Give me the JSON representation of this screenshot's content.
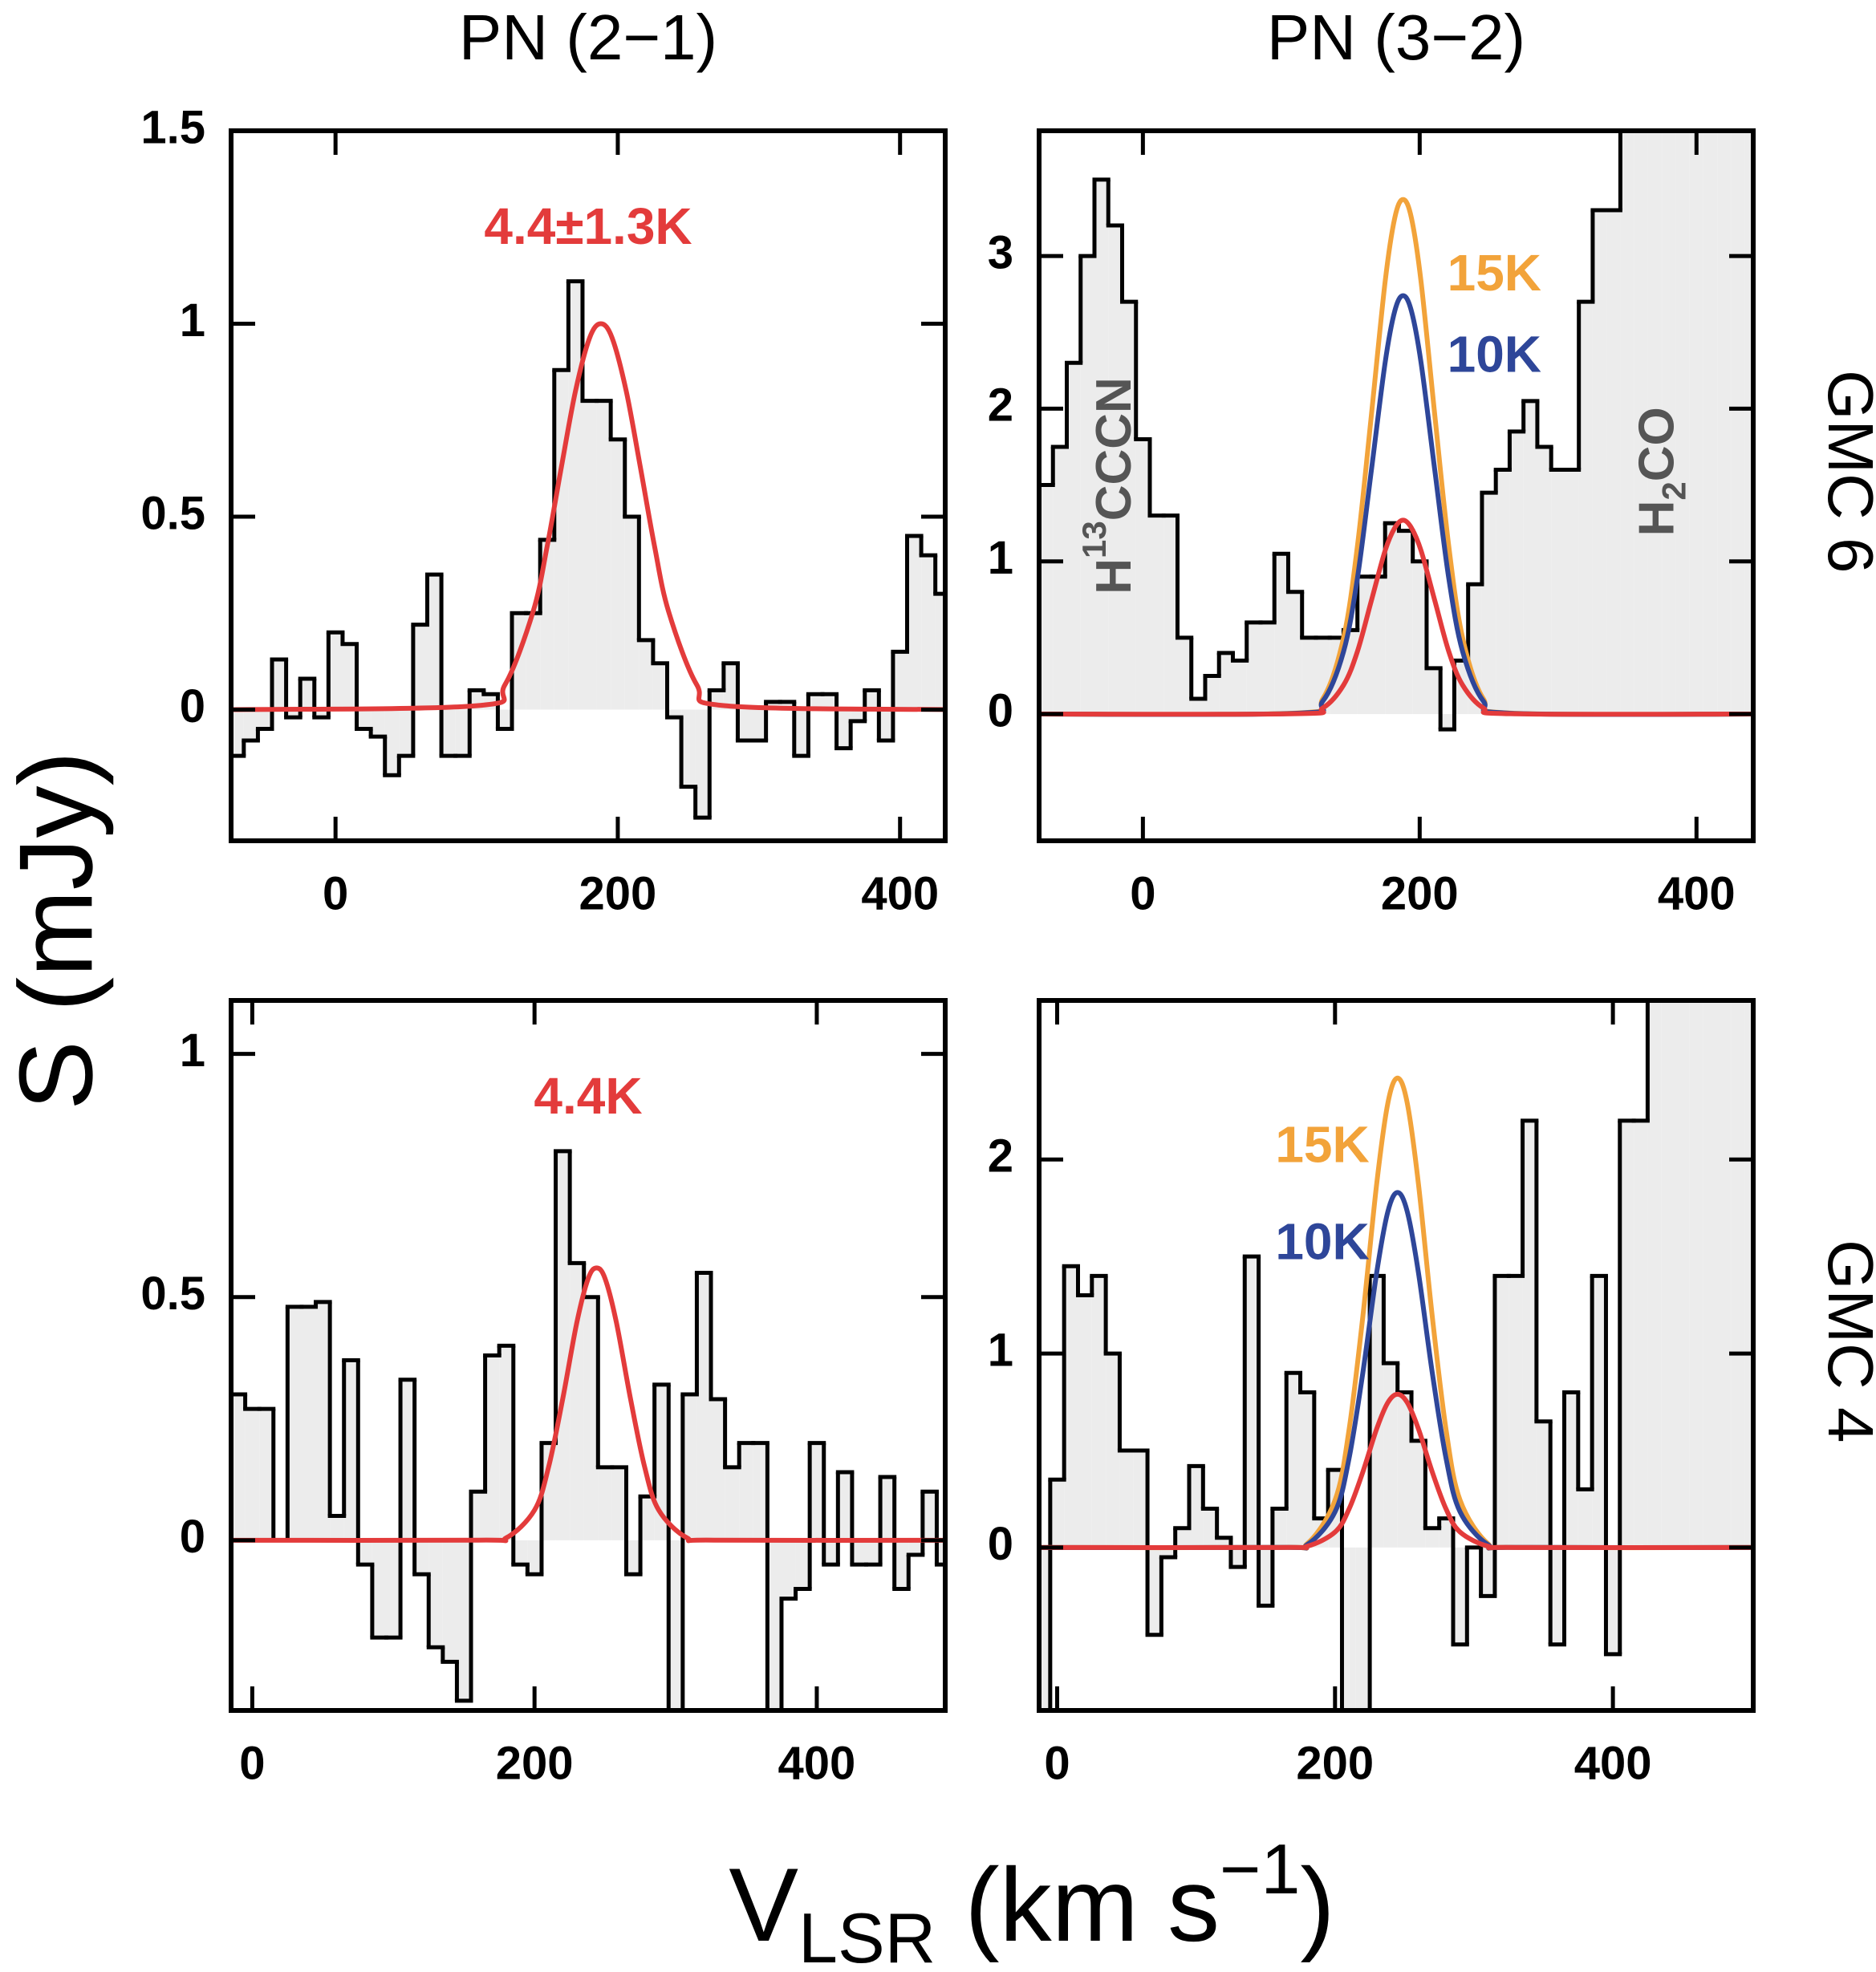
{
  "figure": {
    "ylabel": "S (mJy)",
    "xlabel": {
      "text": "V",
      "sub": "LSR",
      "text2": " (km s",
      "sup": "−1",
      "text3": ")"
    }
  },
  "chart_data": [
    {
      "type": "step",
      "title": "PN (2−1)",
      "annotation": {
        "text": "4.4±1.3K",
        "color": "#e33b3b"
      },
      "xlim": [
        -74,
        432
      ],
      "ylim": [
        -0.34,
        1.5
      ],
      "xticks": [
        0,
        200,
        400
      ],
      "yticks": [
        0,
        0.5,
        1,
        1.5
      ],
      "histogram": {
        "color": "#000000",
        "fill": "#ececec",
        "x": [
          -70,
          -60,
          -50,
          -40,
          -30,
          -20,
          -10,
          0,
          10,
          20,
          30,
          40,
          50,
          60,
          70,
          80,
          90,
          100,
          110,
          120,
          130,
          140,
          150,
          160,
          170,
          180,
          190,
          200,
          210,
          220,
          230,
          240,
          250,
          260,
          270,
          280,
          290,
          300,
          310,
          320,
          330,
          340,
          350,
          360,
          370,
          380,
          390,
          400,
          410,
          420,
          430
        ],
        "values": [
          -0.12,
          -0.08,
          -0.05,
          0.13,
          -0.02,
          0.08,
          -0.02,
          0.2,
          0.17,
          -0.05,
          -0.07,
          -0.17,
          -0.12,
          0.22,
          0.35,
          -0.12,
          -0.12,
          0.05,
          0.04,
          -0.05,
          0.25,
          0.25,
          0.44,
          0.88,
          1.11,
          0.8,
          0.8,
          0.7,
          0.5,
          0.18,
          0.12,
          -0.02,
          -0.2,
          -0.28,
          0.05,
          0.12,
          -0.08,
          -0.08,
          0.02,
          0.02,
          -0.12,
          0.04,
          0.04,
          -0.1,
          -0.03,
          0.05,
          -0.08,
          0.15,
          0.45,
          0.4,
          0.3
        ]
      },
      "series": [
        {
          "color": "#e33b3b",
          "x": [
            -74,
            100,
            120,
            140,
            150,
            160,
            170,
            180,
            188,
            196,
            206,
            216,
            226,
            236,
            256,
            276,
            432
          ],
          "values": [
            0,
            0.01,
            0.064,
            0.254,
            0.424,
            0.628,
            0.825,
            0.963,
            1.0,
            0.963,
            0.825,
            0.628,
            0.424,
            0.254,
            0.064,
            0.01,
            0
          ]
        }
      ]
    },
    {
      "type": "step",
      "title": "PN (3−2)",
      "side_label": "GMC 6",
      "label_side": "right",
      "annotations": [
        {
          "text": "H",
          "sup": "13",
          "text2": "CCCN",
          "color": "#555555"
        },
        {
          "text": "H",
          "sub": "2",
          "text2": "CO",
          "color": "#555555"
        }
      ],
      "xlim": [
        -75,
        441
      ],
      "ylim": [
        -0.83,
        3.82
      ],
      "xticks": [
        0,
        200,
        400
      ],
      "yticks": [
        0,
        1,
        2,
        3
      ],
      "histogram": {
        "color": "#000000",
        "fill": "#ececec",
        "x": [
          -70,
          -60,
          -50,
          -40,
          -30,
          -20,
          -10,
          0,
          10,
          20,
          30,
          40,
          50,
          60,
          70,
          80,
          90,
          100,
          110,
          120,
          130,
          140,
          150,
          160,
          170,
          180,
          190,
          200,
          210,
          220,
          230,
          240,
          250,
          260,
          270,
          280,
          290,
          300,
          310,
          320,
          330,
          340,
          350,
          360,
          370,
          380,
          390,
          400,
          410,
          420,
          430,
          440
        ],
        "values": [
          1.5,
          1.75,
          2.3,
          3.0,
          3.5,
          3.2,
          2.7,
          1.8,
          1.3,
          1.3,
          0.5,
          0.1,
          0.25,
          0.4,
          0.35,
          0.6,
          0.6,
          1.05,
          0.8,
          0.5,
          0.5,
          0.5,
          0.55,
          0.9,
          0.9,
          1.25,
          1.2,
          1.0,
          0.3,
          -0.1,
          0.35,
          0.85,
          1.45,
          1.6,
          1.85,
          2.05,
          1.75,
          1.6,
          1.6,
          2.7,
          3.3,
          3.3,
          4.0,
          4.0,
          4.0,
          4.0,
          4.0,
          4.0,
          4.0,
          4.0,
          4.0,
          4.0
        ]
      },
      "series": [
        {
          "name": "15K",
          "color": "#f2a33a",
          "x": [
            -75,
            110,
            130,
            145,
            155,
            165,
            175,
            182,
            188,
            194,
            201,
            211,
            221,
            231,
            246,
            266,
            441
          ],
          "values": [
            0,
            0.006,
            0.1,
            0.5,
            1.1,
            1.95,
            2.83,
            3.25,
            3.37,
            3.25,
            2.83,
            1.95,
            1.1,
            0.5,
            0.1,
            0.006,
            0
          ]
        },
        {
          "name": "10K",
          "color": "#2e4699",
          "x": [
            -75,
            110,
            130,
            145,
            155,
            165,
            175,
            182,
            188,
            194,
            201,
            211,
            221,
            231,
            246,
            266,
            441
          ],
          "values": [
            0,
            0.005,
            0.085,
            0.41,
            0.89,
            1.59,
            2.3,
            2.64,
            2.74,
            2.64,
            2.3,
            1.59,
            0.89,
            0.41,
            0.085,
            0.005,
            0
          ]
        },
        {
          "color": "#e33b3b",
          "x": [
            -75,
            110,
            130,
            145,
            155,
            165,
            175,
            182,
            188,
            194,
            201,
            211,
            221,
            231,
            246,
            266,
            441
          ],
          "values": [
            0,
            0.002,
            0.04,
            0.19,
            0.41,
            0.74,
            1.07,
            1.22,
            1.27,
            1.22,
            1.07,
            0.74,
            0.41,
            0.19,
            0.04,
            0.002,
            0
          ]
        }
      ]
    },
    {
      "type": "step",
      "annotation": {
        "text": "4.4K",
        "color": "#e33b3b"
      },
      "xlim": [
        -15,
        491
      ],
      "ylim": [
        -0.35,
        1.11
      ],
      "xticks": [
        0,
        200,
        400
      ],
      "yticks": [
        0,
        0.5,
        1
      ],
      "histogram": {
        "color": "#000000",
        "fill": "#ececec",
        "x": [
          -10,
          0,
          10,
          20,
          30,
          40,
          50,
          60,
          70,
          80,
          90,
          100,
          110,
          120,
          130,
          140,
          150,
          160,
          170,
          180,
          190,
          200,
          210,
          220,
          230,
          240,
          250,
          260,
          270,
          280,
          290,
          300,
          310,
          320,
          330,
          340,
          350,
          360,
          370,
          380,
          390,
          400,
          410,
          420,
          430,
          440,
          450,
          460,
          470,
          480,
          490
        ],
        "values": [
          0.3,
          0.27,
          0.27,
          0.0,
          0.48,
          0.48,
          0.49,
          0.05,
          0.37,
          -0.05,
          -0.2,
          -0.2,
          0.33,
          -0.07,
          -0.22,
          -0.25,
          -0.33,
          0.1,
          0.38,
          0.4,
          -0.05,
          -0.07,
          0.2,
          0.8,
          0.57,
          0.5,
          0.15,
          0.15,
          -0.07,
          0.09,
          0.32,
          -0.35,
          0.3,
          0.55,
          0.29,
          0.15,
          0.2,
          0.2,
          -0.35,
          -0.12,
          -0.1,
          0.2,
          -0.05,
          0.14,
          -0.05,
          -0.05,
          0.13,
          -0.1,
          -0.03,
          0.1,
          -0.05
        ]
      },
      "series": [
        {
          "color": "#e33b3b",
          "x": [
            -15,
            160,
            180,
            200,
            210,
            220,
            230,
            238,
            244,
            250,
            258,
            268,
            278,
            288,
            308,
            328,
            491
          ],
          "values": [
            0,
            0.0002,
            0.005,
            0.062,
            0.151,
            0.291,
            0.448,
            0.538,
            0.56,
            0.538,
            0.448,
            0.291,
            0.151,
            0.062,
            0.005,
            0.0002,
            0
          ]
        }
      ]
    },
    {
      "type": "step",
      "side_label": "GMC 4",
      "label_side": "left",
      "xlim": [
        -13,
        501
      ],
      "ylim": [
        -0.84,
        2.82
      ],
      "xticks": [
        0,
        200,
        400
      ],
      "yticks": [
        0,
        1,
        2
      ],
      "histogram": {
        "color": "#000000",
        "fill": "#ececec",
        "x": [
          -10,
          0,
          10,
          20,
          30,
          40,
          50,
          60,
          70,
          80,
          90,
          100,
          110,
          120,
          130,
          140,
          150,
          160,
          170,
          180,
          190,
          200,
          210,
          220,
          230,
          240,
          250,
          260,
          270,
          280,
          290,
          300,
          310,
          320,
          330,
          340,
          350,
          360,
          370,
          380,
          390,
          400,
          410,
          420,
          430,
          440,
          450,
          460,
          470,
          480,
          490,
          500
        ],
        "values": [
          -0.9,
          0.35,
          1.45,
          1.3,
          1.4,
          1.0,
          0.5,
          0.5,
          -0.45,
          -0.05,
          0.1,
          0.42,
          0.2,
          0.05,
          -0.1,
          1.5,
          -0.3,
          0.2,
          0.9,
          0.8,
          0.15,
          0.4,
          -0.9,
          -0.9,
          1.4,
          0.95,
          0.8,
          0.55,
          0.1,
          0.15,
          -0.5,
          0.0,
          -0.25,
          1.4,
          1.4,
          2.2,
          0.65,
          -0.5,
          0.8,
          0.3,
          1.4,
          -0.55,
          2.2,
          2.2,
          3.0,
          3.0,
          3.0,
          3.0,
          3.0,
          3.0,
          3.0,
          3.0
        ]
      },
      "series": [
        {
          "name": "15K",
          "color": "#f2a33a",
          "x": [
            -13,
            160,
            180,
            200,
            210,
            220,
            230,
            238,
            245,
            252,
            260,
            270,
            280,
            290,
            310,
            330,
            501
          ],
          "values": [
            0,
            0.0007,
            0.02,
            0.244,
            0.603,
            1.19,
            1.876,
            2.29,
            2.42,
            2.29,
            1.876,
            1.19,
            0.603,
            0.244,
            0.02,
            0.0007,
            0
          ]
        },
        {
          "name": "10K",
          "color": "#2e4699",
          "x": [
            -13,
            160,
            180,
            200,
            210,
            220,
            230,
            238,
            245,
            252,
            260,
            270,
            280,
            290,
            310,
            330,
            501
          ],
          "values": [
            0,
            0.0005,
            0.015,
            0.184,
            0.456,
            0.9,
            1.418,
            1.731,
            1.83,
            1.731,
            1.418,
            0.9,
            0.456,
            0.184,
            0.015,
            0.0005,
            0
          ]
        },
        {
          "color": "#e33b3b",
          "x": [
            -13,
            160,
            180,
            200,
            210,
            220,
            230,
            238,
            245,
            252,
            260,
            270,
            280,
            290,
            310,
            330,
            501
          ],
          "values": [
            0,
            0.0002,
            0.0066,
            0.0796,
            0.197,
            0.389,
            0.612,
            0.747,
            0.79,
            0.747,
            0.612,
            0.389,
            0.197,
            0.0796,
            0.0066,
            0.0002,
            0
          ]
        }
      ]
    }
  ]
}
